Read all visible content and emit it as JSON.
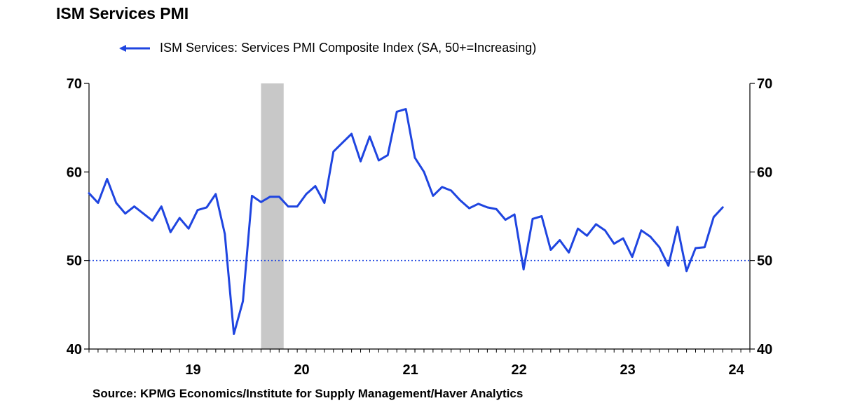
{
  "title": "ISM Services PMI",
  "source": "Source:  KPMG Economics/Institute for Supply Management/Haver Analytics",
  "colors": {
    "series": "#1f45e0",
    "recession": "#c8c8c8",
    "reference": "#1f45e0",
    "axis": "#000000"
  },
  "chart_data": {
    "type": "line",
    "title": "ISM Services PMI",
    "legend_position": "top-left",
    "series": [
      {
        "name": "ISM Services: Services PMI Composite Index (SA, 50+=Increasing)",
        "start": "2018-07",
        "frequency": "monthly",
        "values": [
          57.6,
          56.5,
          59.2,
          56.5,
          55.3,
          56.1,
          55.3,
          54.5,
          56.1,
          53.2,
          54.8,
          53.6,
          55.7,
          56.0,
          57.5,
          53.0,
          41.7,
          45.4,
          57.3,
          56.6,
          57.2,
          57.2,
          56.1,
          56.1,
          57.5,
          58.4,
          56.5,
          62.3,
          63.3,
          64.3,
          61.2,
          64.0,
          61.3,
          61.9,
          66.8,
          67.1,
          61.6,
          60.0,
          57.3,
          58.3,
          57.9,
          56.8,
          55.9,
          56.4,
          56.0,
          55.8,
          54.6,
          55.2,
          49.0,
          54.7,
          55.0,
          51.2,
          52.3,
          50.9,
          53.6,
          52.8,
          54.1,
          53.4,
          51.9,
          52.5,
          50.4,
          53.4,
          52.7,
          51.5,
          49.4,
          53.8,
          48.8,
          51.4,
          51.5,
          54.9,
          56.0
        ]
      }
    ],
    "recessions": [
      {
        "start": "2020-02",
        "end": "2020-04"
      }
    ],
    "reference_line": 50,
    "ylim": [
      40,
      70
    ],
    "yticks": [
      40,
      50,
      60,
      70
    ],
    "xlim": [
      "2018-07",
      "2024-08"
    ],
    "xtick_labels": [
      "19",
      "20",
      "21",
      "22",
      "23",
      "24"
    ],
    "grid": false
  }
}
